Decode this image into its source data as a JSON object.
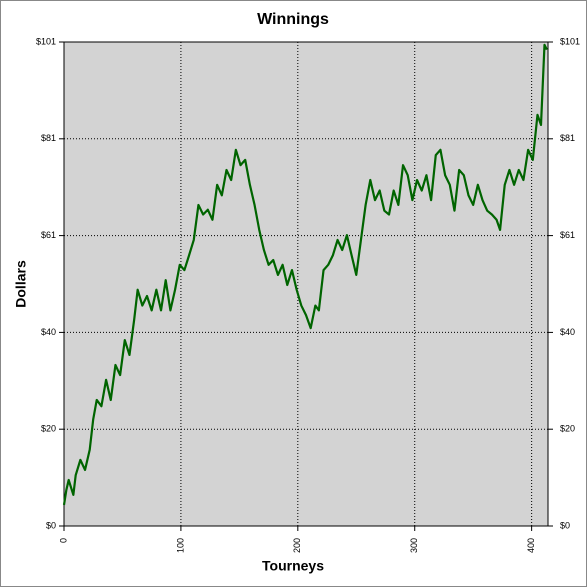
{
  "chart_data": {
    "type": "line",
    "title": "Winnings",
    "x_label": "Tourneys",
    "y_label": "Dollars",
    "xlim": [
      0,
      414
    ],
    "xticks": [
      0,
      100,
      200,
      300,
      400
    ],
    "ylim": [
      0,
      101
    ],
    "yticks": [
      {
        "value": 0,
        "label": "$0"
      },
      {
        "value": 20.2,
        "label": "$20"
      },
      {
        "value": 40.4,
        "label": "$40"
      },
      {
        "value": 60.6,
        "label": "$61"
      },
      {
        "value": 80.8,
        "label": "$81"
      },
      {
        "value": 101,
        "label": "$101"
      }
    ],
    "grid": true,
    "series": [
      {
        "color": "#006400",
        "x": [
          0,
          2,
          4,
          8,
          10,
          14,
          18,
          22,
          25,
          28,
          32,
          36,
          40,
          44,
          48,
          52,
          56,
          60,
          63,
          67,
          71,
          75,
          79,
          83,
          87,
          91,
          95,
          99,
          103,
          107,
          111,
          115,
          119,
          123,
          127,
          131,
          135,
          139,
          143,
          147,
          151,
          155,
          159,
          163,
          167,
          171,
          175,
          179,
          183,
          187,
          191,
          195,
          199,
          203,
          207,
          211,
          215,
          218,
          222,
          226,
          230,
          234,
          238,
          242,
          246,
          250,
          254,
          258,
          262,
          266,
          270,
          274,
          278,
          282,
          286,
          290,
          294,
          298,
          302,
          306,
          310,
          314,
          318,
          322,
          326,
          330,
          334,
          338,
          342,
          346,
          350,
          354,
          358,
          362,
          366,
          370,
          373,
          377,
          381,
          385,
          389,
          393,
          397,
          401,
          405,
          408,
          411,
          413
        ],
        "values": [
          4.4,
          7.5,
          9.6,
          6.5,
          10.6,
          13.8,
          11.7,
          15.9,
          22.3,
          26.3,
          25,
          30.5,
          26.3,
          33.6,
          31.5,
          38.8,
          35.7,
          43,
          49.3,
          46,
          48,
          45,
          49.3,
          45,
          51.3,
          45,
          49.3,
          54.5,
          53.4,
          56.5,
          59.7,
          67,
          65,
          66,
          63.9,
          71.2,
          69,
          74.3,
          72.2,
          78.5,
          75.3,
          76.4,
          71.2,
          67,
          61.8,
          57.6,
          54.5,
          55.5,
          52.4,
          54.5,
          50.3,
          53.4,
          49.3,
          46,
          44,
          41.3,
          46,
          45,
          53.4,
          54.5,
          56.5,
          59.7,
          57.6,
          60.7,
          56.5,
          52.4,
          59.7,
          67,
          72.2,
          68,
          70,
          65.8,
          65,
          70,
          67,
          75.3,
          73.2,
          68,
          72.2,
          70,
          73.2,
          68,
          77.4,
          78.5,
          73.2,
          71.2,
          65.8,
          74.3,
          73.2,
          69,
          67,
          71.2,
          68,
          65.8,
          65,
          63.9,
          61.8,
          71.2,
          74.3,
          71.2,
          74.3,
          72.2,
          78.5,
          76.4,
          85.8,
          83.7,
          100.4,
          99.4
        ]
      }
    ]
  }
}
